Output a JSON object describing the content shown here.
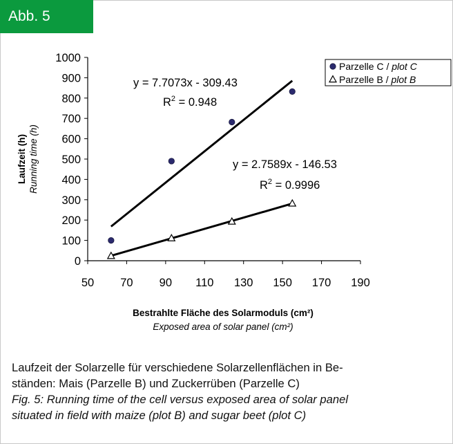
{
  "badge": {
    "label": "Abb. 5",
    "color": "#0b9a3e"
  },
  "chart_data": {
    "type": "scatter",
    "xlim": [
      50,
      190
    ],
    "ylim": [
      0,
      1000
    ],
    "x_ticks": [
      50,
      70,
      90,
      110,
      130,
      150,
      170,
      190
    ],
    "y_ticks": [
      0,
      100,
      200,
      300,
      400,
      500,
      600,
      700,
      800,
      900,
      1000
    ],
    "xlabel": "Bestrahlte Fläche des Solarmoduls (cm²)",
    "xlabel_en": "Exposed area of solar panel (cm²)",
    "ylabel": "Laufzeit (h)",
    "ylabel_en": "Running time (h)",
    "series": [
      {
        "name": "Parzelle C / ",
        "name_en": "plot C",
        "marker": "circle",
        "color": "#2b2a6e",
        "points": [
          [
            62,
            100
          ],
          [
            93,
            490
          ],
          [
            124,
            682
          ],
          [
            155,
            832
          ]
        ],
        "trend": {
          "slope": 7.7073,
          "intercept": -309.43,
          "x_range": [
            62,
            155
          ]
        },
        "equation": "y = 7.7073x - 309.43",
        "r2_label": "R",
        "r2_sup": "2",
        "r2_value": " = 0.948"
      },
      {
        "name": "Parzelle B / ",
        "name_en": "plot B",
        "marker": "triangle",
        "color": "#000000",
        "points": [
          [
            62,
            23
          ],
          [
            93,
            110
          ],
          [
            124,
            192
          ],
          [
            155,
            281
          ]
        ],
        "trend": {
          "slope": 2.7589,
          "intercept": -146.53,
          "x_range": [
            62,
            155
          ]
        },
        "equation": "y = 2.7589x - 146.53",
        "r2_label": "R",
        "r2_sup": "2",
        "r2_value": " = 0.9996"
      }
    ],
    "legend_position": "top-right"
  },
  "caption": {
    "de_line1": "Laufzeit der Solarzelle für verschiedene Solarzellenflächen in Be-",
    "de_line2": "ständen: Mais (Parzelle B) und Zuckerrüben (Parzelle C)",
    "en_line1": "Fig. 5: Running time of the cell versus exposed area of solar panel",
    "en_line2": "situated in field with maize (plot B) and sugar beet (plot C)"
  }
}
